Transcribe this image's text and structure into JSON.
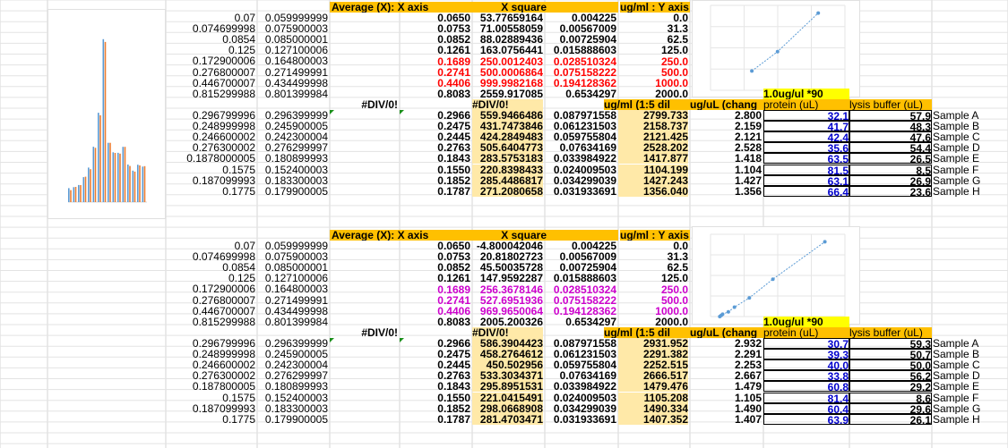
{
  "left_col_a": [
    "0.07",
    "0.074699998",
    "0.0854",
    "0.125",
    "0.172900006",
    "0.276800007",
    "0.446700007",
    "0.815299988"
  ],
  "left_col_b": [
    "0.059999999",
    "0.075900003",
    "0.085000001",
    "0.127100006",
    "0.164800003",
    "0.271499991",
    "0.434499998",
    "0.801399984"
  ],
  "left_col_c": [
    "0.296799996",
    "0.248999998",
    "0.246600002",
    "0.276300002",
    "0.1878000005",
    "0.1575",
    "0.187099993",
    "0.1775"
  ],
  "left_col_d": [
    "0.296399999",
    "0.245900005",
    "0.242300004",
    "0.276299997",
    "0.180899993",
    "0.152400003",
    "0.183300003",
    "0.179900005"
  ],
  "left_col_c2": [
    "0.296799996",
    "0.248999998",
    "0.246600002",
    "0.276300002",
    "0.187800005",
    "0.1575",
    "0.187099993",
    "0.1775"
  ],
  "left_col_d2": [
    "0.296399999",
    "0.245900005",
    "0.242300004",
    "0.276299997",
    "0.180899993",
    "0.152400003",
    "0.183300003",
    "0.179900005"
  ],
  "headers": {
    "avg": "Average (X):  X axis",
    "xsq": "X square",
    "ugml": "ug/ml :  Y axis",
    "div0": "#DIV/0!",
    "dil": "ug/ml (1:5 dil",
    "chang": "ug/uL (chang",
    "factor": "1.0ug/ul *90",
    "protein": "protein (uL)",
    "lysis": "lysis buffer (uL)"
  },
  "block1": {
    "std": [
      [
        "0.0650",
        "53.77659164",
        "0.004225",
        "0.0"
      ],
      [
        "0.0753",
        "71.00558059",
        "0.00567009",
        "31.3"
      ],
      [
        "0.0852",
        "88.02889436",
        "0.00725904",
        "62.5"
      ],
      [
        "0.1261",
        "163.0756441",
        "0.015888603",
        "125.0"
      ],
      [
        "0.1689",
        "250.0012403",
        "0.028510324",
        "250.0"
      ],
      [
        "0.2741",
        "500.0006864",
        "0.075158222",
        "500.0"
      ],
      [
        "0.4406",
        "999.9982168",
        "0.194128362",
        "1000.0"
      ],
      [
        "0.8083",
        "2559.917085",
        "0.6534297",
        "2000.0"
      ]
    ],
    "samples": [
      [
        "0.2966",
        "559.9466486",
        "0.087971558",
        "2799.733",
        "2.800",
        "32.1",
        "57.9",
        "Sample A"
      ],
      [
        "0.2475",
        "431.7473846",
        "0.061231503",
        "2158.737",
        "2.159",
        "41.7",
        "48.3",
        "Sample B"
      ],
      [
        "0.2445",
        "424.2849483",
        "0.059755804",
        "2121.425",
        "2.121",
        "42.4",
        "47.6",
        "Sample C"
      ],
      [
        "0.2763",
        "505.6404773",
        "0.07634169",
        "2528.202",
        "2.528",
        "35.6",
        "54.4",
        "Sample D"
      ],
      [
        "0.1843",
        "283.5753183",
        "0.033984922",
        "1417.877",
        "1.418",
        "63.5",
        "26.5",
        "Sample E"
      ],
      [
        "0.1550",
        "220.8398433",
        "0.024009503",
        "1104.199",
        "1.104",
        "81.5",
        "8.5",
        "Sample F"
      ],
      [
        "0.1852",
        "285.4486817",
        "0.034299039",
        "1427.243",
        "1.427",
        "63.1",
        "26.9",
        "Sample G"
      ],
      [
        "0.1787",
        "271.2080658",
        "0.031933691",
        "1356.040",
        "1.356",
        "66.4",
        "23.6",
        "Sample H"
      ]
    ]
  },
  "block2": {
    "std": [
      [
        "0.0650",
        "-4.800042046",
        "0.004225",
        "0.0"
      ],
      [
        "0.0753",
        "20.81802723",
        "0.00567009",
        "31.3"
      ],
      [
        "0.0852",
        "45.50035728",
        "0.00725904",
        "62.5"
      ],
      [
        "0.1261",
        "147.9592287",
        "0.015888603",
        "125.0"
      ],
      [
        "0.1689",
        "256.3678146",
        "0.028510324",
        "250.0"
      ],
      [
        "0.2741",
        "527.6951936",
        "0.075158222",
        "500.0"
      ],
      [
        "0.4406",
        "969.9650064",
        "0.194128362",
        "1000.0"
      ],
      [
        "0.8083",
        "2005.200326",
        "0.6534297",
        "2000.0"
      ]
    ],
    "samples": [
      [
        "0.2966",
        "586.3904423",
        "0.087971558",
        "2931.952",
        "2.932",
        "30.7",
        "59.3",
        "Sample A"
      ],
      [
        "0.2475",
        "458.2764612",
        "0.061231503",
        "2291.382",
        "2.291",
        "39.3",
        "50.7",
        "Sample B"
      ],
      [
        "0.2445",
        "450.502956",
        "0.059755804",
        "2252.515",
        "2.253",
        "40.0",
        "50.0",
        "Sample C"
      ],
      [
        "0.2763",
        "533.3034371",
        "0.07634169",
        "2666.517",
        "2.667",
        "33.8",
        "56.2",
        "Sample D"
      ],
      [
        "0.1843",
        "295.8951531",
        "0.033984922",
        "1479.476",
        "1.479",
        "60.8",
        "29.2",
        "Sample E"
      ],
      [
        "0.1550",
        "221.0415491",
        "0.024009503",
        "1105.208",
        "1.105",
        "81.4",
        "8.6",
        "Sample F"
      ],
      [
        "0.1852",
        "298.0668908",
        "0.034299039",
        "1490.334",
        "1.490",
        "60.4",
        "29.6",
        "Sample G"
      ],
      [
        "0.1787",
        "281.4703471",
        "0.031933691",
        "1407.352",
        "1.407",
        "63.9",
        "26.1",
        "Sample H"
      ]
    ]
  },
  "colors": {
    "highlight_red": "#ff0000",
    "highlight_magenta": "#cc00cc",
    "header_orange": "#ffc000",
    "column_yellow": "#ffe9a8",
    "link_blue": "#0000cc",
    "series_blue": "#5b9bd5",
    "series_orange": "#ed7d31"
  },
  "chart_data": [
    {
      "type": "bar",
      "series": [
        {
          "values": [
            0.07,
            0.0747,
            0.0854,
            0.125,
            0.1729,
            0.2768,
            0.4467,
            0.8153,
            0.2968,
            0.249,
            0.2466,
            0.2763,
            0.1878,
            0.1575,
            0.1871,
            0.1775
          ]
        },
        {
          "values": [
            0.06,
            0.0759,
            0.085,
            0.1271,
            0.1648,
            0.2715,
            0.4345,
            0.8014,
            0.2964,
            0.2459,
            0.2423,
            0.2763,
            0.1809,
            0.1524,
            0.1833,
            0.1799
          ]
        }
      ],
      "ylim": [
        0,
        0.85
      ]
    },
    {
      "type": "scatter",
      "x": [
        0.1689,
        0.2741,
        0.4406
      ],
      "y": [
        250.0,
        500.0,
        1000.0
      ]
    },
    {
      "type": "scatter",
      "x": [
        0.065,
        0.0753,
        0.0852,
        0.1261,
        0.1689,
        0.2741,
        0.4406,
        0.8083
      ],
      "y": [
        0.0,
        31.3,
        62.5,
        125.0,
        250.0,
        500.0,
        1000.0,
        2000.0
      ]
    }
  ]
}
